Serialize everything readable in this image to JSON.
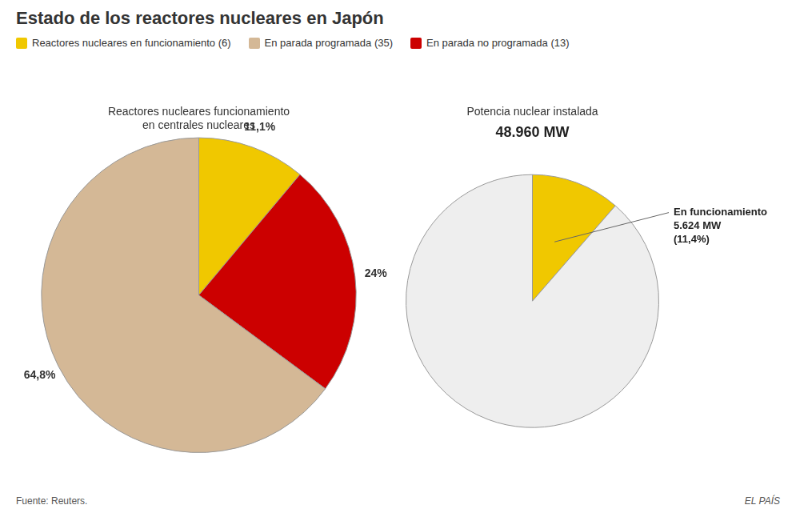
{
  "title": "Estado de los reactores nucleares en Japón",
  "legend_items": [
    {
      "label": "Reactores nucleares en funcionamiento (6)",
      "color": "#f0c800"
    },
    {
      "label": "En parada programada (35)",
      "color": "#d4b896"
    },
    {
      "label": "En parada no programada (13)",
      "color": "#cc0000"
    }
  ],
  "source": "Fuente: Reuters.",
  "credit": "EL PAÍS",
  "chart_data": [
    {
      "type": "pie",
      "title": "Reactores nucleares funcionamiento\nen centrales nucleares",
      "values": [
        11.1,
        24.0,
        64.8
      ],
      "value_labels": [
        "11,1%",
        "24%",
        "64,8%"
      ],
      "colors": [
        "#f0c800",
        "#cc0000",
        "#d4b896"
      ],
      "data_labels": true
    },
    {
      "type": "pie",
      "title": "Potencia nuclear instalada",
      "subtitle": "48.960 MW",
      "values": [
        11.4,
        88.6
      ],
      "colors": [
        "#f0c800",
        "#eeeeee"
      ],
      "annotations": [
        "En funcionamiento\n5.624 MW\n(11,4%)"
      ],
      "data_labels": false
    }
  ]
}
